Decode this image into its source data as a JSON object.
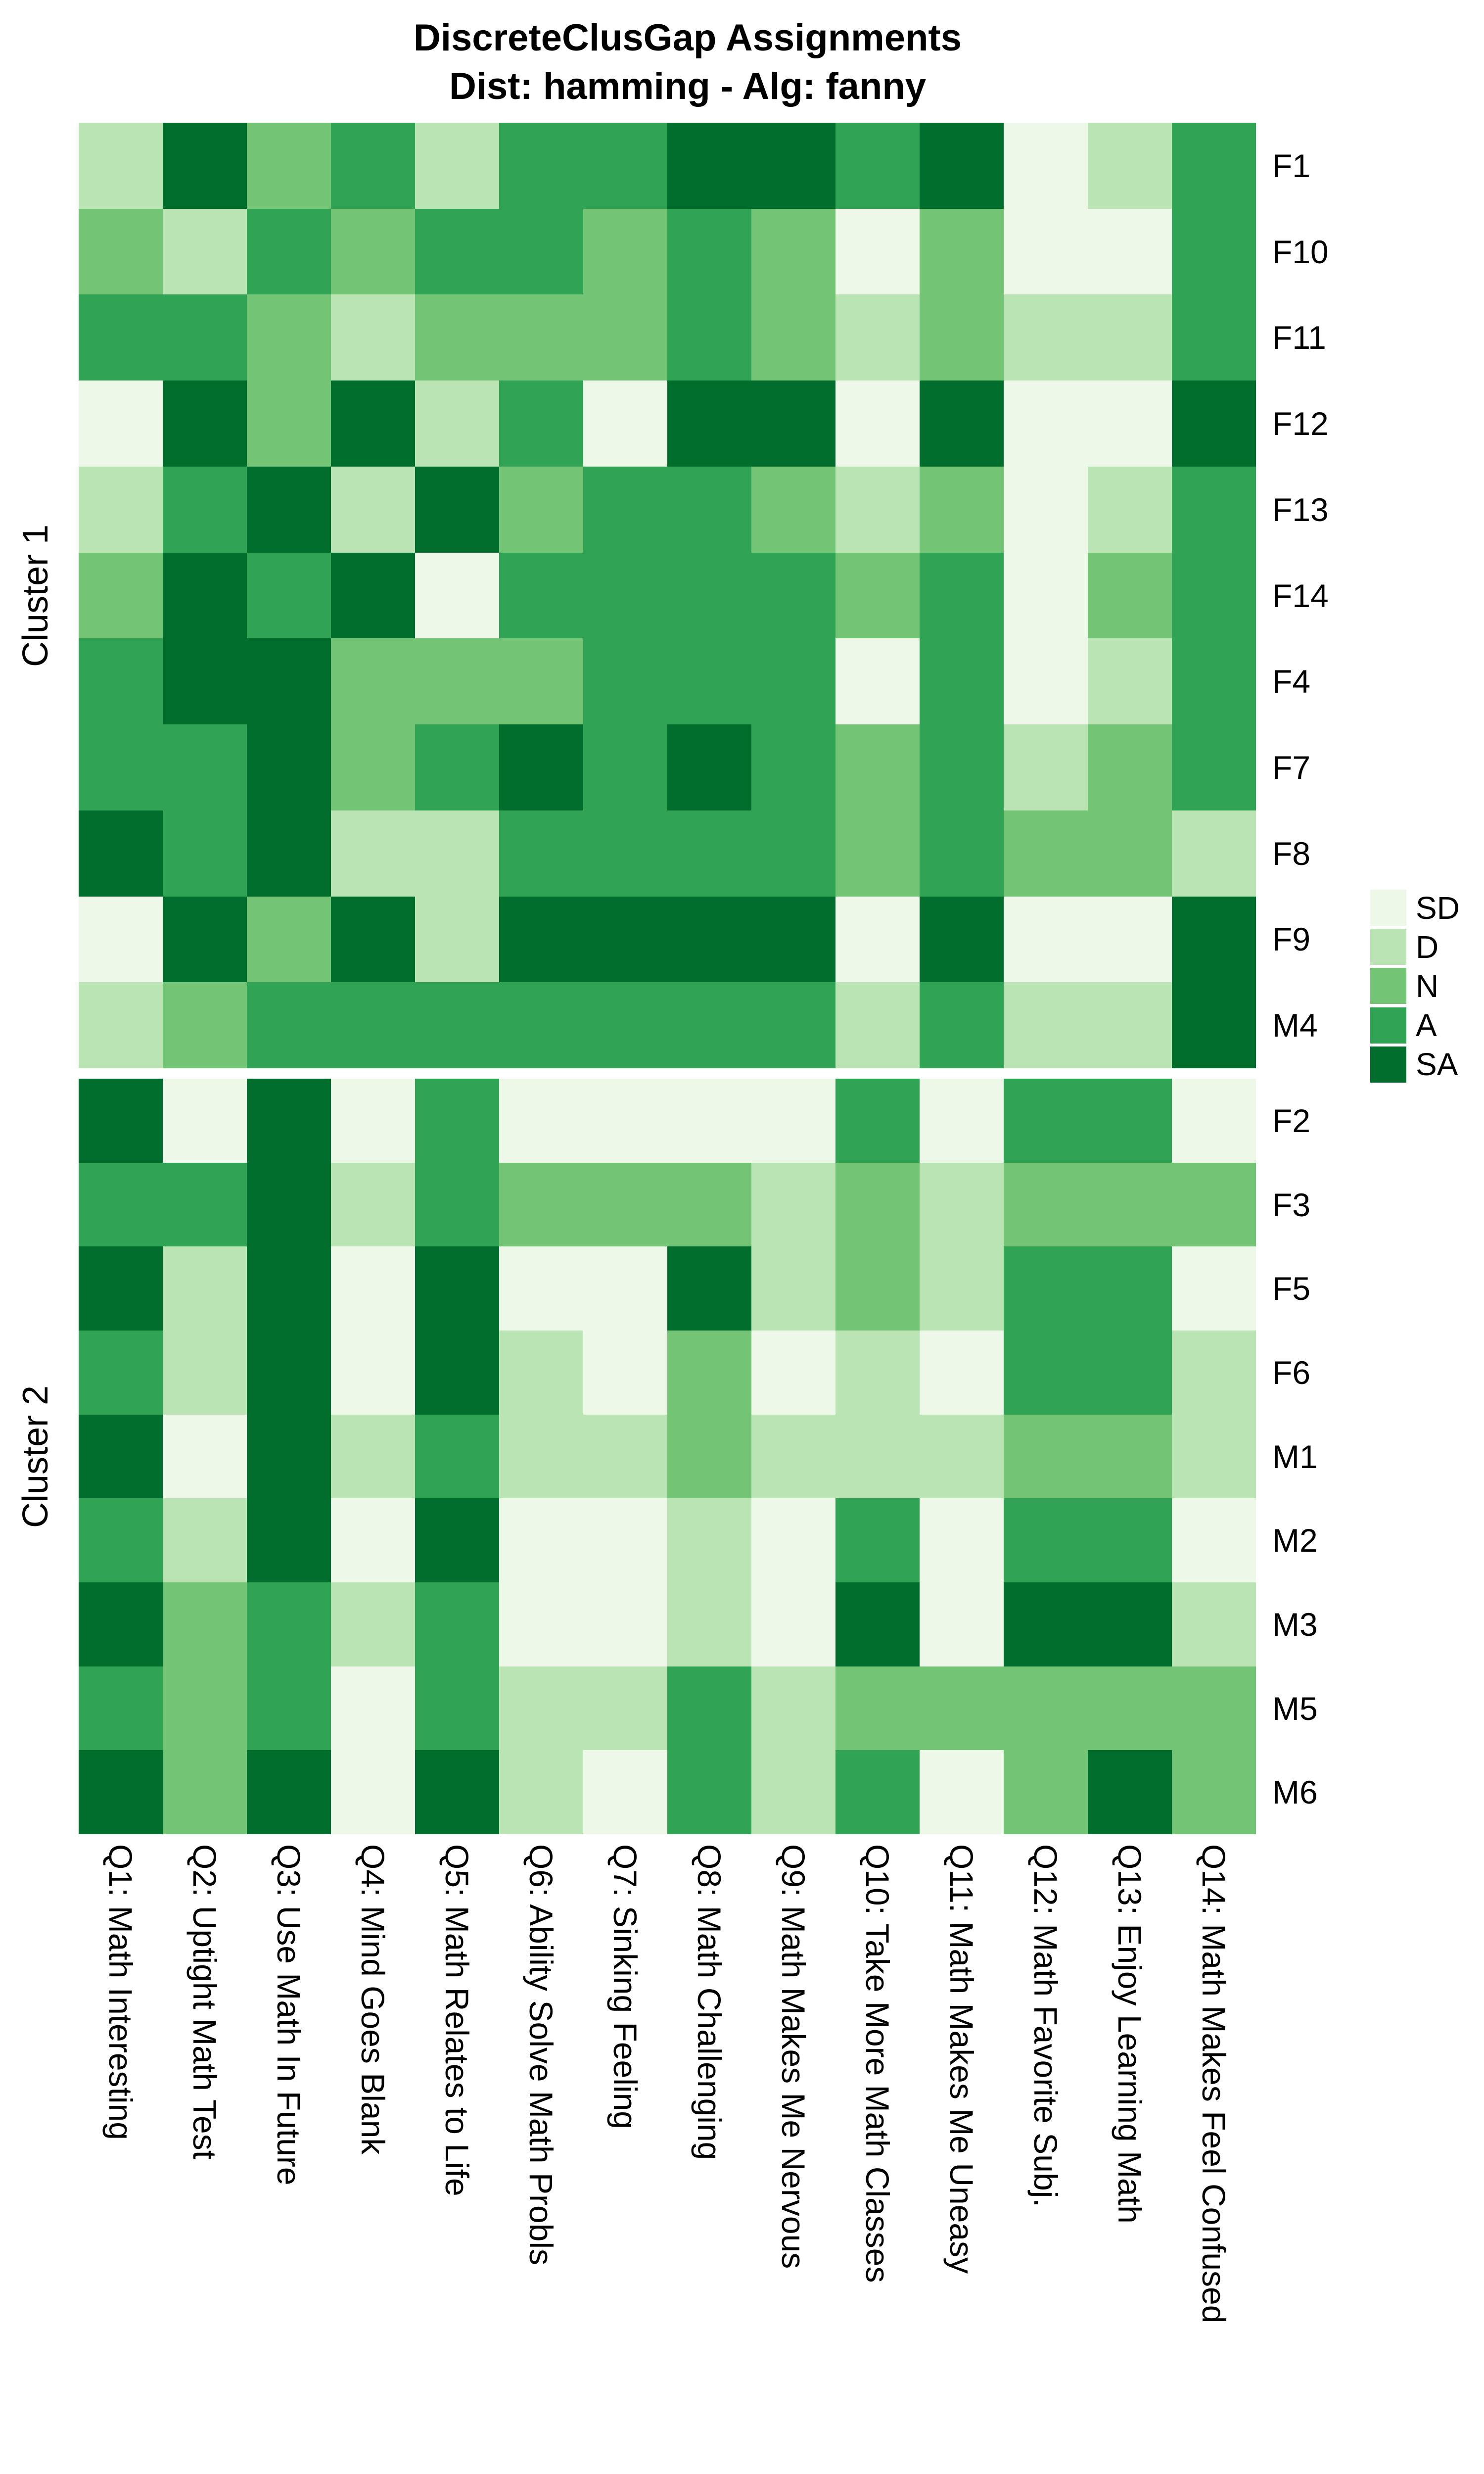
{
  "title": {
    "line1": "DiscreteClusGap Assignments",
    "line2": "Dist: hamming - Alg: fanny"
  },
  "chart_data": {
    "type": "heatmap",
    "title": "DiscreteClusGap Assignments",
    "subtitle": "Dist: hamming - Alg: fanny",
    "legend_position": "right",
    "scale_labels": [
      "SD",
      "D",
      "N",
      "A",
      "SA"
    ],
    "colors": {
      "SD": "#EDF8E9",
      "D": "#BAE4B3",
      "N": "#74C476",
      "A": "#31A354",
      "SA": "#006D2C"
    },
    "columns": [
      "Q1: Math Interesting",
      "Q2: Uptight Math Test",
      "Q3: Use Math In Future",
      "Q4: Mind Goes Blank",
      "Q5: Math Relates to Life",
      "Q6: Ability Solve Math Probls",
      "Q7: Sinking Feeling",
      "Q8: Math Challenging",
      "Q9: Math Makes Me Nervous",
      "Q10: Take More Math Classes",
      "Q11: Math Makes Me Uneasy",
      "Q12: Math Favorite Subj.",
      "Q13: Enjoy Learning Math",
      "Q14: Math Makes Feel Confused"
    ],
    "clusters": [
      {
        "label": "Cluster 1",
        "rows": [
          {
            "label": "F1",
            "values": [
              "D",
              "SA",
              "N",
              "A",
              "D",
              "A",
              "A",
              "SA",
              "SA",
              "A",
              "SA",
              "SD",
              "D",
              "A"
            ]
          },
          {
            "label": "F10",
            "values": [
              "N",
              "D",
              "A",
              "N",
              "A",
              "A",
              "N",
              "A",
              "N",
              "SD",
              "N",
              "SD",
              "SD",
              "A"
            ]
          },
          {
            "label": "F11",
            "values": [
              "A",
              "A",
              "N",
              "D",
              "N",
              "N",
              "N",
              "A",
              "N",
              "D",
              "N",
              "D",
              "D",
              "A"
            ]
          },
          {
            "label": "F12",
            "values": [
              "SD",
              "SA",
              "N",
              "SA",
              "D",
              "A",
              "SD",
              "SA",
              "SA",
              "SD",
              "SA",
              "SD",
              "SD",
              "SA"
            ]
          },
          {
            "label": "F13",
            "values": [
              "D",
              "A",
              "SA",
              "D",
              "SA",
              "N",
              "A",
              "A",
              "N",
              "D",
              "N",
              "SD",
              "D",
              "A"
            ]
          },
          {
            "label": "F14",
            "values": [
              "N",
              "SA",
              "A",
              "SA",
              "SD",
              "A",
              "A",
              "A",
              "A",
              "N",
              "A",
              "SD",
              "N",
              "A"
            ]
          },
          {
            "label": "F4",
            "values": [
              "A",
              "SA",
              "SA",
              "N",
              "N",
              "N",
              "A",
              "A",
              "A",
              "SD",
              "A",
              "SD",
              "D",
              "A"
            ]
          },
          {
            "label": "F7",
            "values": [
              "A",
              "A",
              "SA",
              "N",
              "A",
              "SA",
              "A",
              "SA",
              "A",
              "N",
              "A",
              "D",
              "N",
              "A"
            ]
          },
          {
            "label": "F8",
            "values": [
              "SA",
              "A",
              "SA",
              "D",
              "D",
              "A",
              "A",
              "A",
              "A",
              "N",
              "A",
              "N",
              "N",
              "D"
            ]
          },
          {
            "label": "F9",
            "values": [
              "SD",
              "SA",
              "N",
              "SA",
              "D",
              "SA",
              "SA",
              "SA",
              "SA",
              "SD",
              "SA",
              "SD",
              "SD",
              "SA"
            ]
          },
          {
            "label": "M4",
            "values": [
              "D",
              "N",
              "A",
              "A",
              "A",
              "A",
              "A",
              "A",
              "A",
              "D",
              "A",
              "D",
              "D",
              "SA"
            ]
          }
        ]
      },
      {
        "label": "Cluster 2",
        "rows": [
          {
            "label": "F2",
            "values": [
              "SA",
              "SD",
              "SA",
              "SD",
              "A",
              "SD",
              "SD",
              "SD",
              "SD",
              "A",
              "SD",
              "A",
              "A",
              "SD"
            ]
          },
          {
            "label": "F3",
            "values": [
              "A",
              "A",
              "SA",
              "D",
              "A",
              "N",
              "N",
              "N",
              "D",
              "N",
              "D",
              "N",
              "N",
              "N"
            ]
          },
          {
            "label": "F5",
            "values": [
              "SA",
              "D",
              "SA",
              "SD",
              "SA",
              "SD",
              "SD",
              "SA",
              "D",
              "N",
              "D",
              "A",
              "A",
              "SD"
            ]
          },
          {
            "label": "F6",
            "values": [
              "A",
              "D",
              "SA",
              "SD",
              "SA",
              "D",
              "SD",
              "N",
              "SD",
              "D",
              "SD",
              "A",
              "A",
              "D"
            ]
          },
          {
            "label": "M1",
            "values": [
              "SA",
              "SD",
              "SA",
              "D",
              "A",
              "D",
              "D",
              "N",
              "D",
              "D",
              "D",
              "N",
              "N",
              "D"
            ]
          },
          {
            "label": "M2",
            "values": [
              "A",
              "D",
              "SA",
              "SD",
              "SA",
              "SD",
              "SD",
              "D",
              "SD",
              "A",
              "SD",
              "A",
              "A",
              "SD"
            ]
          },
          {
            "label": "M3",
            "values": [
              "SA",
              "N",
              "A",
              "D",
              "A",
              "SD",
              "SD",
              "D",
              "SD",
              "SA",
              "SD",
              "SA",
              "SA",
              "D"
            ]
          },
          {
            "label": "M5",
            "values": [
              "A",
              "N",
              "A",
              "SD",
              "A",
              "D",
              "D",
              "A",
              "D",
              "N",
              "N",
              "N",
              "N",
              "N"
            ]
          },
          {
            "label": "M6",
            "values": [
              "SA",
              "N",
              "SA",
              "SD",
              "SA",
              "D",
              "SD",
              "A",
              "D",
              "A",
              "SD",
              "N",
              "SA",
              "N"
            ]
          }
        ]
      }
    ]
  }
}
